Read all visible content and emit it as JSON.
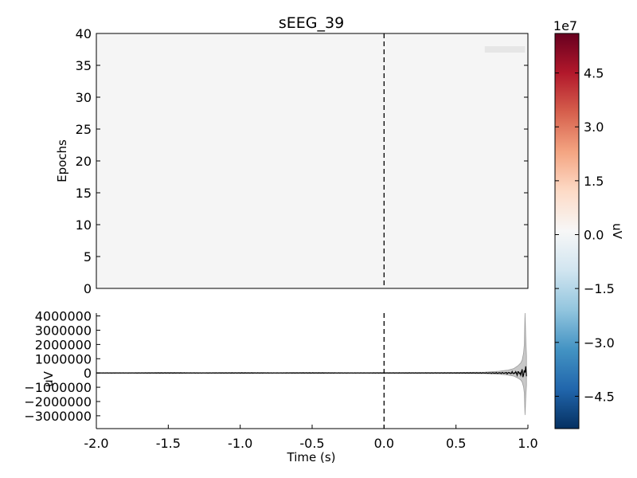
{
  "chart_data": [
    {
      "type": "heatmap",
      "title": "sEEG_39",
      "ylabel": "Epochs",
      "xlim": [
        -2.0,
        1.0
      ],
      "ylim": [
        0,
        40
      ],
      "yticks": [
        0,
        5,
        10,
        15,
        20,
        25,
        30,
        35,
        40
      ],
      "yticklabels": [
        "0",
        "5",
        "10",
        "15",
        "20",
        "25",
        "30",
        "35",
        "40"
      ],
      "background_color": "#f5f5f5",
      "event_marker_time": 0.0,
      "grid": false,
      "faint_region": {
        "x": [
          0.7,
          0.98
        ],
        "y": [
          37,
          38
        ]
      }
    },
    {
      "type": "line",
      "xlabel": "Time (s)",
      "ylabel": "uV",
      "xlim": [
        -2.0,
        1.0
      ],
      "ylim": [
        -3900000,
        4200000
      ],
      "xticks": [
        -2.0,
        -1.5,
        -1.0,
        -0.5,
        0.0,
        0.5,
        1.0
      ],
      "xticklabels": [
        "-2.0",
        "-1.5",
        "-1.0",
        "-0.5",
        "0.0",
        "0.5",
        "1.0"
      ],
      "yticks": [
        4000000,
        3000000,
        2000000,
        1000000,
        0,
        -1000000,
        -2000000,
        -3000000
      ],
      "yticklabels": [
        "4000000",
        "3000000",
        "2000000",
        "1000000",
        "0",
        "−1000000",
        "−2000000",
        "−3000000"
      ],
      "series": [
        {
          "role": "mean",
          "color": "#000000"
        },
        {
          "role": "spread",
          "color": "#9a9a9a"
        }
      ],
      "x": [
        -2.0,
        -1.75,
        -1.5,
        -1.25,
        -1.0,
        -0.75,
        -0.5,
        -0.25,
        0.0,
        0.25,
        0.5,
        0.7,
        0.8,
        0.86,
        0.9,
        0.93,
        0.95,
        0.96,
        0.97,
        0.975,
        0.98,
        0.985,
        0.99
      ],
      "envelope": [
        20000,
        20000,
        40000,
        20000,
        40000,
        20000,
        40000,
        20000,
        30000,
        30000,
        40000,
        60000,
        120000,
        200000,
        300000,
        500000,
        700000,
        900000,
        1400000,
        2000000,
        4200000,
        2500000,
        1200000
      ],
      "event_marker_time": 0.0,
      "grid": false
    },
    {
      "type": "colorbar",
      "label": "uV",
      "exponent_label": "1e7",
      "range": [
        -5.4,
        5.6
      ],
      "ticks": [
        4.5,
        3.0,
        1.5,
        0.0,
        -1.5,
        -3.0,
        -4.5
      ],
      "ticklabels": [
        "4.5",
        "3.0",
        "1.5",
        "0.0",
        "−1.5",
        "−3.0",
        "−4.5"
      ],
      "colormap": "RdBu_r",
      "colors": [
        "#053061",
        "#2166ac",
        "#4393c3",
        "#92c5de",
        "#d1e5f0",
        "#f7f7f7",
        "#fddbc7",
        "#f4a582",
        "#d6604d",
        "#b2182b",
        "#67001f"
      ]
    }
  ]
}
